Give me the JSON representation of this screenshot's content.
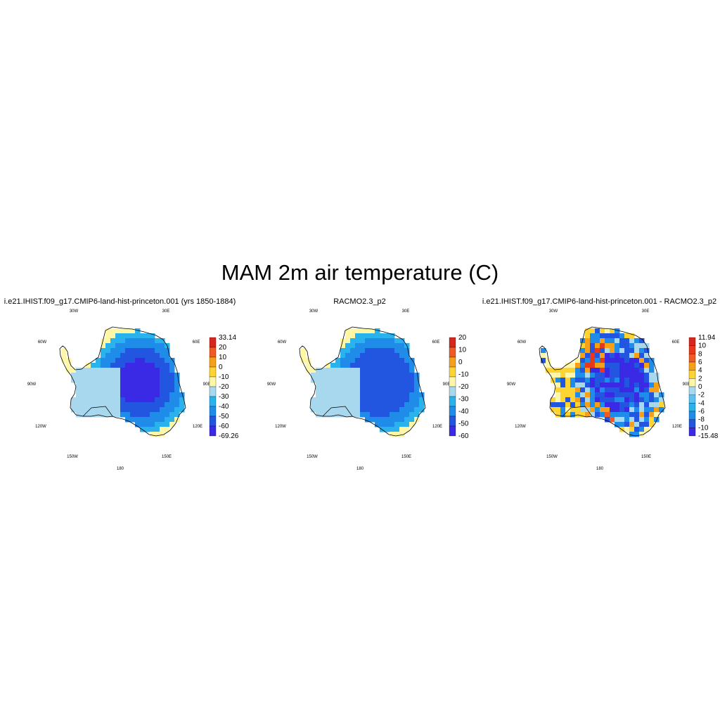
{
  "title": "MAM 2m air temperature (C)",
  "panels": [
    {
      "title": "i.e21.IHIST.f09_g17.CMIP6-land-hist-princeton.001 (yrs 1850-1884)",
      "colorbar": {
        "labels": [
          "33.14",
          "20",
          "10",
          "0",
          "-10",
          "-20",
          "-30",
          "-40",
          "-50",
          "-60",
          "-69.26"
        ],
        "colors": [
          "#d7261e",
          "#f05a23",
          "#f6a01a",
          "#fdd432",
          "#fff7a8",
          "#a8d8ee",
          "#29b2ec",
          "#1e8ce8",
          "#2255e0",
          "#3a2ae6"
        ]
      },
      "field": "model"
    },
    {
      "title": "RACMO2.3_p2",
      "colorbar": {
        "labels": [
          "20",
          "10",
          "0",
          "-10",
          "-20",
          "-30",
          "-40",
          "-50",
          "-60"
        ],
        "colors": [
          "#d7261e",
          "#f05a23",
          "#f6a01a",
          "#fdd432",
          "#fff7a8",
          "#a8d8ee",
          "#29b2ec",
          "#1e8ce8",
          "#2255e0",
          "#3a2ae6"
        ]
      },
      "field": "obs"
    },
    {
      "title": "i.e21.IHIST.f09_g17.CMIP6-land-hist-princeton.001 - RACMO2.3_p2",
      "colorbar": {
        "labels": [
          "11.94",
          "10",
          "8",
          "6",
          "4",
          "2",
          "0",
          "-2",
          "-4",
          "-6",
          "-8",
          "-10",
          "-15.48"
        ],
        "colors": [
          "#d7261e",
          "#e8381c",
          "#f05a23",
          "#f6a01a",
          "#fdd432",
          "#fff7a8",
          "#a8d8ee",
          "#5cc0f0",
          "#29b2ec",
          "#1e8ce8",
          "#2255e0",
          "#3a2ae6"
        ]
      },
      "field": "diff"
    }
  ],
  "map_labels": {
    "lon_30w": "30W",
    "lon_30e": "30E",
    "lon_60w": "60W",
    "lon_60e": "60E",
    "lon_90w": "90W",
    "lon_90e": "90E",
    "lon_120w": "120W",
    "lon_120e": "120E",
    "lon_150w": "150W",
    "lon_150e": "150E",
    "lon_180": "180"
  }
}
